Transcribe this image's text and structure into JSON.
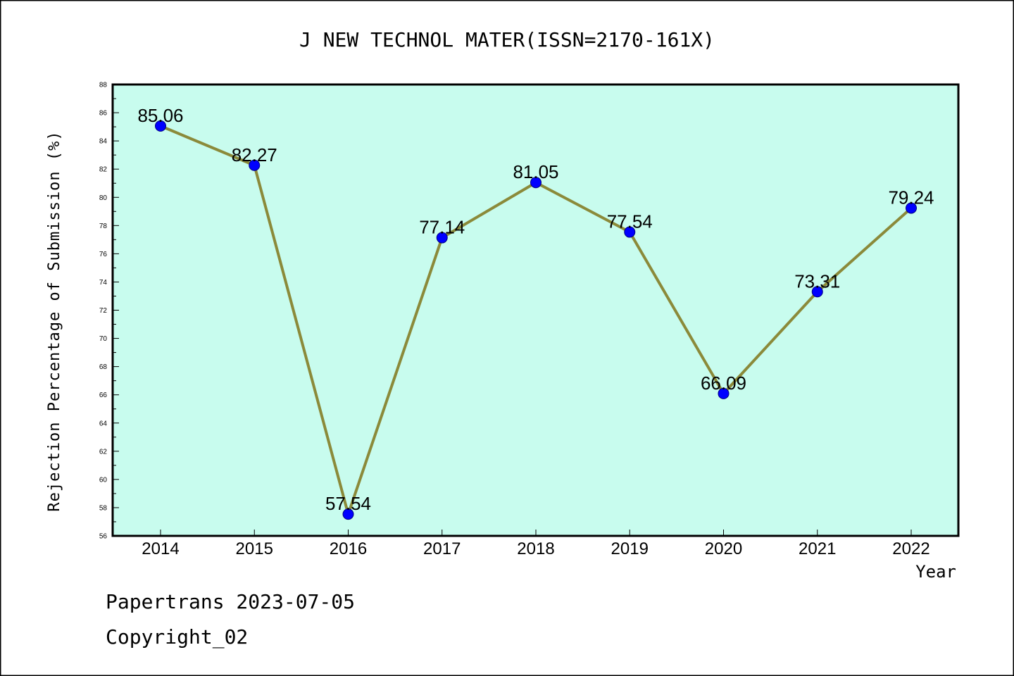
{
  "chart_data": {
    "type": "line",
    "title": "J NEW TECHNOL MATER(ISSN=2170-161X)",
    "xlabel": "Year",
    "ylabel": "Rejection Percentage of Submission (%)",
    "categories": [
      "2014",
      "2015",
      "2016",
      "2017",
      "2018",
      "2019",
      "2020",
      "2021",
      "2022"
    ],
    "series": [
      {
        "values": [
          85.06,
          82.27,
          57.54,
          77.14,
          81.05,
          77.54,
          66.09,
          73.31,
          79.24
        ],
        "labels": [
          "85.06",
          "82.27",
          "57.54",
          "77.14",
          "81.05",
          "77.54",
          "66.09",
          "73.31",
          "79.24"
        ]
      }
    ],
    "ylim": [
      56,
      88
    ],
    "yticks": [
      "56",
      "58",
      "60",
      "62",
      "64",
      "66",
      "68",
      "70",
      "72",
      "74",
      "76",
      "78",
      "80",
      "82",
      "84",
      "86",
      "88"
    ],
    "grid": false,
    "legend": "none",
    "colors": {
      "plot_background": "#c8fcee",
      "line": "#8b8a3a",
      "marker": "#0000ff",
      "marker_edge": "#000080"
    }
  },
  "footer": {
    "line1": "Papertrans 2023-07-05",
    "line2": "Copyright_02"
  }
}
